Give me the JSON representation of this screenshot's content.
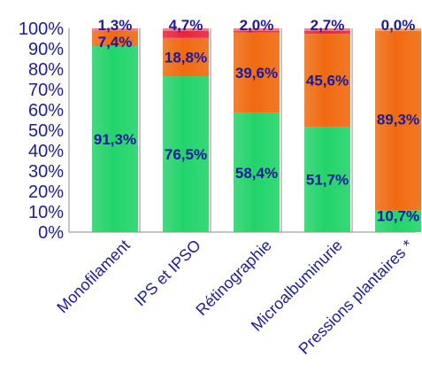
{
  "chart_data": {
    "type": "bar",
    "stacked": true,
    "title": "",
    "xlabel": "",
    "ylabel": "",
    "ylim": [
      0,
      100
    ],
    "yticks": [
      "0%",
      "10%",
      "20%",
      "30%",
      "40%",
      "50%",
      "60%",
      "70%",
      "80%",
      "90%",
      "100%"
    ],
    "grid": false,
    "legend": "none",
    "categories": [
      "Monofilament",
      "IPS et IPSO",
      "Rétinographie",
      "Microalbuminurie",
      "Pressions plantaires *"
    ],
    "series": [
      {
        "color": "#22d46a",
        "values": [
          91.3,
          76.5,
          58.4,
          51.7,
          10.7
        ],
        "labels": [
          "91,3%",
          "76,5%",
          "58,4%",
          "51,7%",
          "10,7%"
        ]
      },
      {
        "color": "#f06a10",
        "values": [
          7.4,
          18.8,
          39.6,
          45.6,
          89.3
        ],
        "labels": [
          "7,4%",
          "18,8%",
          "39,6%",
          "45,6%",
          "89,3%"
        ]
      },
      {
        "color": "#e8243c",
        "values": [
          1.3,
          4.7,
          2.0,
          2.7,
          0.0
        ],
        "labels": [
          "1,3%",
          "4,7%",
          "2,0%",
          "2,7%",
          "0,0%"
        ]
      }
    ]
  }
}
